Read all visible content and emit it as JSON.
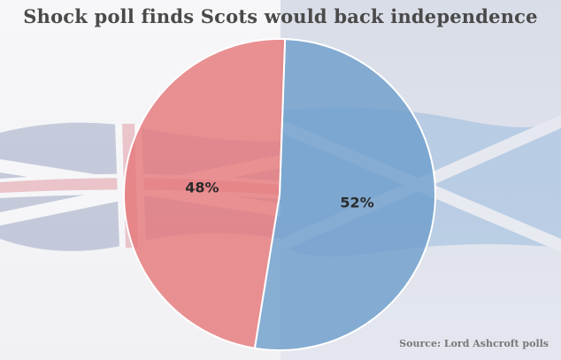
{
  "title": "Shock poll finds Scots would back independence",
  "source": "Source: Lord Ashcroft polls",
  "chart_data": {
    "type": "pie",
    "title": "Shock poll finds Scots would back independence",
    "slices": [
      {
        "value": 52,
        "label": "52%",
        "color": "#6f9fcc"
      },
      {
        "value": 48,
        "label": "48%",
        "color": "#e5797b"
      }
    ],
    "start_angle_deg": 2,
    "direction": "clockwise",
    "annotations": [
      "Source: Lord Ashcroft polls"
    ]
  },
  "colors": {
    "left_background": "#f4f4f6",
    "right_background": "#dde1ea",
    "title_text": "#4a4a4a",
    "union_flag_red": "#c8202f",
    "union_flag_blue": "#1f3a7a",
    "saltire_blue": "#4c8fd0"
  }
}
